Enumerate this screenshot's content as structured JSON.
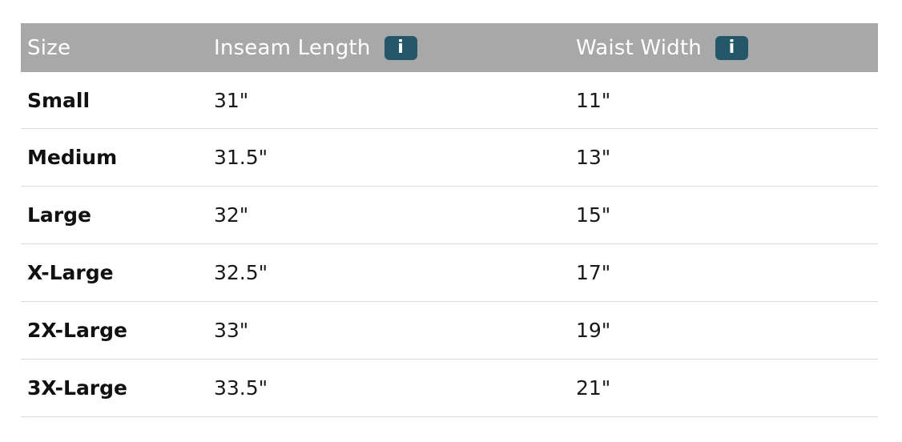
{
  "table": {
    "headers": {
      "size": "Size",
      "inseam": "Inseam Length",
      "waist": "Waist Width",
      "info_icon_glyph": "i"
    },
    "rows": [
      {
        "size": "Small",
        "inseam": "31\"",
        "waist": "11\""
      },
      {
        "size": "Medium",
        "inseam": "31.5\"",
        "waist": "13\""
      },
      {
        "size": "Large",
        "inseam": "32\"",
        "waist": "15\""
      },
      {
        "size": "X-Large",
        "inseam": "32.5\"",
        "waist": "17\""
      },
      {
        "size": "2X-Large",
        "inseam": "33\"",
        "waist": "19\""
      },
      {
        "size": "3X-Large",
        "inseam": "33.5\"",
        "waist": "21\""
      }
    ]
  },
  "colors": {
    "header_bg": "#a8a8a8",
    "info_badge_bg": "#245868",
    "row_divider": "#dcdcdc"
  }
}
